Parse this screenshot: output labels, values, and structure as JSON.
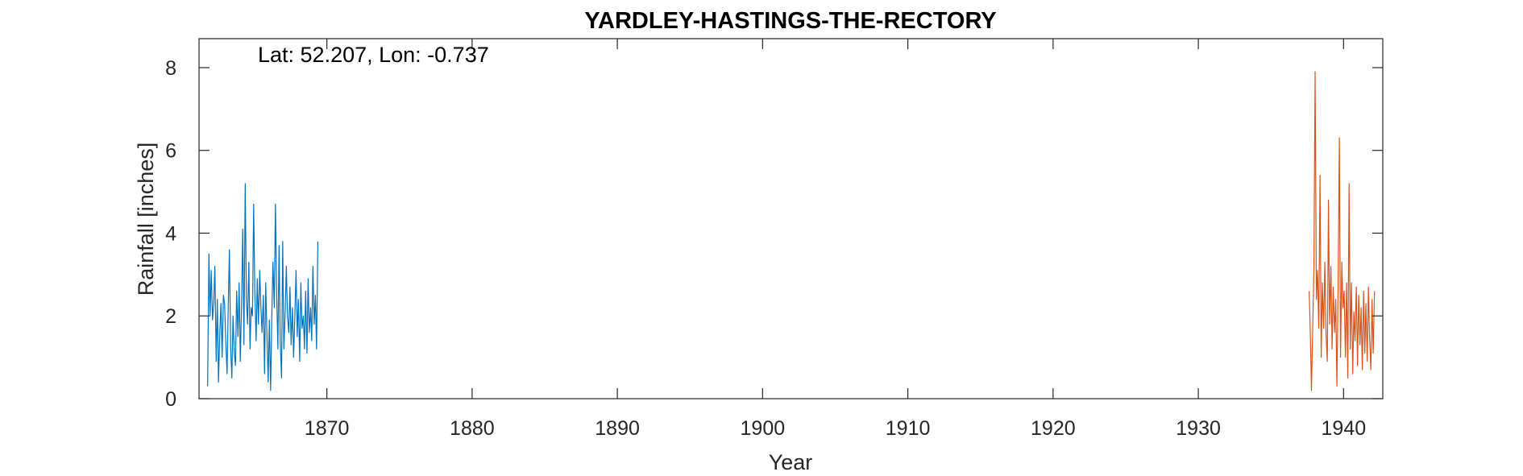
{
  "chart_data": {
    "type": "line",
    "title": "YARDLEY-HASTINGS-THE-RECTORY",
    "annotation": "Lat: 52.207, Lon: -0.737",
    "xlabel": "Year",
    "ylabel": "Rainfall [inches]",
    "xlim": [
      1861.2,
      1942.7
    ],
    "ylim": [
      0,
      8.7
    ],
    "xticks": [
      1870,
      1880,
      1890,
      1900,
      1910,
      1920,
      1930,
      1940
    ],
    "yticks": [
      0,
      2,
      4,
      6,
      8
    ],
    "grid": false,
    "legend": "none",
    "series": [
      {
        "color": "#0072BD",
        "x": [
          1861.79,
          1861.88,
          1861.96,
          1862.04,
          1862.13,
          1862.21,
          1862.29,
          1862.38,
          1862.46,
          1862.54,
          1862.63,
          1862.71,
          1862.79,
          1862.88,
          1862.96,
          1863.04,
          1863.13,
          1863.21,
          1863.29,
          1863.38,
          1863.46,
          1863.54,
          1863.63,
          1863.71,
          1863.79,
          1863.88,
          1863.96,
          1864.04,
          1864.13,
          1864.21,
          1864.29,
          1864.38,
          1864.46,
          1864.54,
          1864.63,
          1864.71,
          1864.79,
          1864.88,
          1864.96,
          1865.04,
          1865.13,
          1865.21,
          1865.29,
          1865.38,
          1865.46,
          1865.54,
          1865.63,
          1865.71,
          1865.79,
          1865.88,
          1865.96,
          1866.04,
          1866.13,
          1866.21,
          1866.29,
          1866.38,
          1866.46,
          1866.54,
          1866.63,
          1866.71,
          1866.79,
          1866.88,
          1866.96,
          1867.04,
          1867.13,
          1867.21,
          1867.29,
          1867.38,
          1867.46,
          1867.54,
          1867.63,
          1867.71,
          1867.79,
          1867.88,
          1867.96,
          1868.04,
          1868.13,
          1868.21,
          1868.29,
          1868.38,
          1868.46,
          1868.54,
          1868.63,
          1868.71,
          1868.79,
          1868.88,
          1868.96,
          1869.04,
          1869.13,
          1869.21,
          1869.29,
          1869.38
        ],
        "y": [
          0.3,
          3.5,
          2.0,
          3.1,
          1.9,
          2.3,
          3.2,
          0.9,
          2.4,
          0.4,
          1.6,
          2.3,
          1.0,
          2.5,
          2.3,
          1.4,
          0.6,
          2.2,
          3.6,
          1.2,
          0.5,
          2.0,
          1.1,
          0.8,
          2.6,
          1.5,
          2.8,
          0.9,
          2.3,
          4.1,
          1.3,
          5.2,
          2.4,
          1.8,
          3.3,
          1.2,
          2.2,
          2.0,
          4.7,
          2.6,
          1.4,
          2.9,
          1.8,
          3.1,
          2.2,
          1.6,
          2.5,
          0.6,
          2.8,
          1.5,
          0.4,
          1.9,
          0.2,
          2.0,
          3.3,
          2.2,
          4.7,
          2.6,
          1.2,
          3.7,
          1.4,
          0.5,
          3.8,
          1.2,
          2.1,
          3.2,
          2.0,
          1.6,
          2.7,
          1.3,
          2.2,
          1.0,
          1.9,
          3.1,
          1.5,
          2.4,
          0.9,
          2.8,
          1.7,
          2.0,
          1.2,
          2.6,
          1.1,
          2.9,
          1.6,
          2.2,
          1.4,
          3.2,
          1.8,
          2.5,
          1.2,
          3.8
        ]
      },
      {
        "color": "#D95319",
        "x": [
          1937.63,
          1937.71,
          1937.79,
          1937.88,
          1937.96,
          1938.04,
          1938.13,
          1938.21,
          1938.29,
          1938.38,
          1938.46,
          1938.54,
          1938.63,
          1938.71,
          1938.79,
          1938.88,
          1938.96,
          1939.04,
          1939.13,
          1939.21,
          1939.29,
          1939.38,
          1939.46,
          1939.54,
          1939.63,
          1939.71,
          1939.79,
          1939.88,
          1939.96,
          1940.04,
          1940.13,
          1940.21,
          1940.29,
          1940.38,
          1940.46,
          1940.54,
          1940.63,
          1940.71,
          1940.79,
          1940.88,
          1940.96,
          1941.04,
          1941.13,
          1941.21,
          1941.29,
          1941.38,
          1941.46,
          1941.54,
          1941.63,
          1941.71,
          1941.79,
          1941.88,
          1941.96,
          1942.04,
          1942.13
        ],
        "y": [
          2.6,
          1.6,
          0.2,
          1.8,
          3.2,
          7.9,
          2.4,
          3.1,
          1.7,
          5.4,
          1.0,
          2.8,
          1.7,
          3.3,
          1.6,
          0.9,
          4.8,
          1.8,
          3.2,
          1.2,
          2.7,
          1.6,
          2.4,
          0.3,
          2.9,
          6.3,
          1.0,
          3.3,
          2.2,
          2.6,
          1.0,
          2.8,
          0.5,
          5.2,
          1.2,
          2.8,
          0.6,
          2.1,
          1.4,
          2.7,
          0.8,
          2.5,
          1.3,
          2.2,
          0.7,
          2.6,
          1.1,
          2.3,
          0.9,
          2.7,
          1.5,
          0.7,
          2.4,
          1.1,
          2.6
        ]
      }
    ]
  }
}
